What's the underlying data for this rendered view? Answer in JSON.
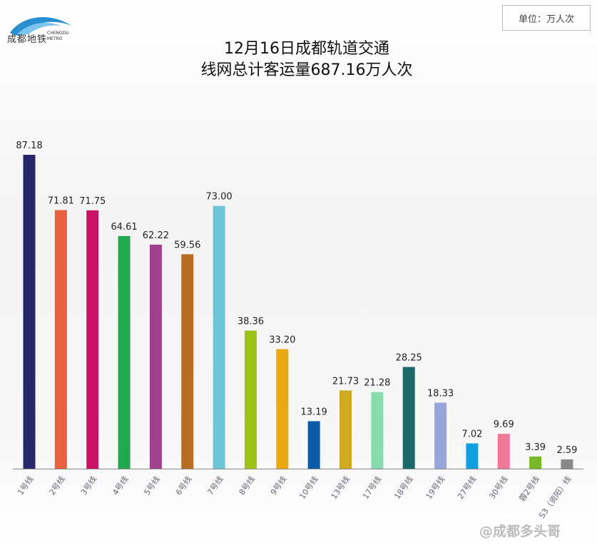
{
  "logo": {
    "cn": "成都地铁",
    "en_top": "CHENGDU",
    "en_bottom": "METRO"
  },
  "unit": "单位：万人次",
  "watermark": "@成都多头哥",
  "chart_data": {
    "type": "bar",
    "title": "12月16日成都轨道交通",
    "subtitle": "线网总计客运量687.16万人次",
    "categories": [
      "1号线",
      "2号线",
      "3号线",
      "4号线",
      "5号线",
      "6号线",
      "7号线",
      "8号线",
      "9号线",
      "10号线",
      "13号线",
      "17号线",
      "18号线",
      "19号线",
      "27号线",
      "30号线",
      "蓉2号线",
      "S3（资阳）线"
    ],
    "values": [
      87.18,
      71.81,
      71.75,
      64.61,
      62.22,
      59.56,
      73.0,
      38.36,
      33.2,
      13.19,
      21.73,
      21.28,
      28.25,
      18.33,
      7.02,
      9.69,
      3.39,
      2.59
    ],
    "labels": [
      "87.18",
      "71.81",
      "71.75",
      "64.61",
      "62.22",
      "59.56",
      "73.00",
      "38.36",
      "33.20",
      "13.19",
      "21.73",
      "21.28",
      "28.25",
      "18.33",
      "7.02",
      "9.69",
      "3.39",
      "2.59"
    ],
    "colors": [
      "#27286b",
      "#e8603c",
      "#cc1166",
      "#22a850",
      "#a0418f",
      "#b86e22",
      "#6cc6d6",
      "#9cc21a",
      "#e8aa10",
      "#0b5aa6",
      "#cfaa20",
      "#88dcb0",
      "#1a6a6a",
      "#98a4dc",
      "#10a0e0",
      "#f07898",
      "#7ab828",
      "#8a8a8a"
    ],
    "ylim": [
      0,
      90
    ],
    "grid": false,
    "legend": "none"
  }
}
